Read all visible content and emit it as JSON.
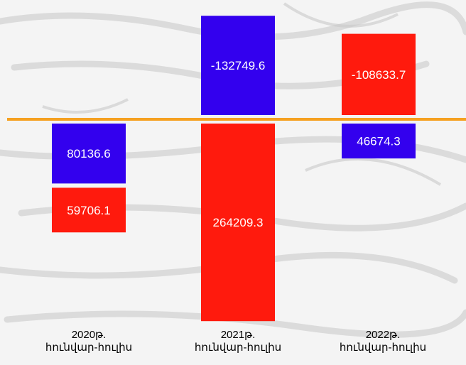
{
  "chart_data": {
    "type": "bar",
    "stacked": "diverging",
    "categories": [
      [
        "2020թ.",
        "հունվար-հուլիս"
      ],
      [
        "2021թ.",
        "հունվար-հուլիս"
      ],
      [
        "2022թ.",
        "հունվար-հուլիս"
      ]
    ],
    "series": [
      {
        "color": "#3300ee",
        "values": [
          80136.6,
          -132749.6,
          46674.3
        ]
      },
      {
        "color": "#ff1a0d",
        "values": [
          59706.1,
          264209.3,
          -108633.7
        ]
      }
    ],
    "labels": [
      [
        "80136.6",
        "59706.1"
      ],
      [
        "-132749.6",
        "264209.3"
      ],
      [
        "46674.3",
        "-108633.7"
      ]
    ],
    "baseline_color": "#f5a020",
    "legend": "none",
    "grid": false
  }
}
